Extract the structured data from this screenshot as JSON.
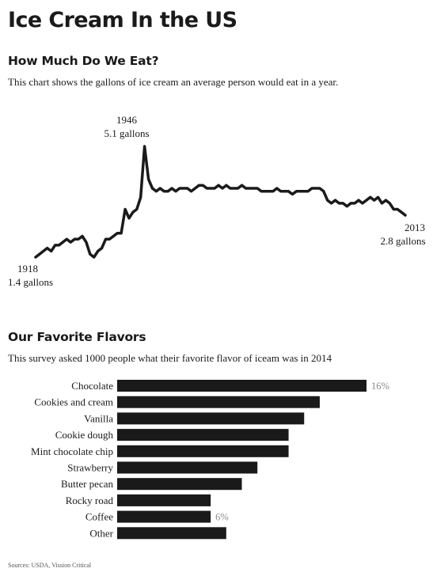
{
  "page": {
    "title": "Ice Cream In the US",
    "sources": "Sources: USDA, Vission Critical"
  },
  "consumption": {
    "heading": "How Much Do We Eat?",
    "description": "This chart shows the gallons of ice cream an average person would eat in a year.",
    "annotations": {
      "start_year": "1918",
      "start_value": "1.4 gallons",
      "peak_year": "1946",
      "peak_value": "5.1 gallons",
      "end_year": "2013",
      "end_value": "2.8 gallons"
    }
  },
  "flavors": {
    "heading": "Our Favorite Flavors",
    "description": "This survey asked 1000 people what their favorite flavor of iceam was in 2014"
  },
  "colors": {
    "ink": "#1a1a1a",
    "value_label": "#8a8a8a"
  },
  "chart_data": [
    {
      "type": "line",
      "x": [
        1918,
        1919,
        1920,
        1921,
        1922,
        1923,
        1924,
        1925,
        1926,
        1927,
        1928,
        1929,
        1930,
        1931,
        1932,
        1933,
        1934,
        1935,
        1936,
        1937,
        1938,
        1939,
        1940,
        1941,
        1942,
        1943,
        1944,
        1945,
        1946,
        1947,
        1948,
        1949,
        1950,
        1951,
        1952,
        1953,
        1954,
        1955,
        1956,
        1957,
        1958,
        1959,
        1960,
        1961,
        1962,
        1963,
        1964,
        1965,
        1966,
        1967,
        1968,
        1969,
        1970,
        1971,
        1972,
        1973,
        1974,
        1975,
        1976,
        1977,
        1978,
        1979,
        1980,
        1981,
        1982,
        1983,
        1984,
        1985,
        1986,
        1987,
        1988,
        1989,
        1990,
        1991,
        1992,
        1993,
        1994,
        1995,
        1996,
        1997,
        1998,
        1999,
        2000,
        2001,
        2002,
        2003,
        2004,
        2005,
        2006,
        2007,
        2008,
        2009,
        2010,
        2011,
        2012,
        2013
      ],
      "series": [
        {
          "values": [
            1.4,
            1.5,
            1.6,
            1.7,
            1.6,
            1.8,
            1.8,
            1.9,
            2.0,
            1.9,
            2.0,
            2.0,
            2.1,
            1.9,
            1.5,
            1.4,
            1.6,
            1.7,
            2.0,
            2.0,
            2.1,
            2.2,
            2.2,
            3.0,
            2.7,
            2.9,
            3.0,
            3.4,
            5.1,
            4.0,
            3.7,
            3.6,
            3.7,
            3.6,
            3.6,
            3.7,
            3.6,
            3.7,
            3.7,
            3.7,
            3.6,
            3.7,
            3.8,
            3.8,
            3.7,
            3.7,
            3.7,
            3.8,
            3.7,
            3.8,
            3.7,
            3.7,
            3.7,
            3.8,
            3.7,
            3.7,
            3.7,
            3.7,
            3.6,
            3.6,
            3.6,
            3.6,
            3.7,
            3.6,
            3.6,
            3.6,
            3.5,
            3.6,
            3.6,
            3.6,
            3.6,
            3.7,
            3.7,
            3.7,
            3.6,
            3.3,
            3.2,
            3.3,
            3.2,
            3.2,
            3.1,
            3.2,
            3.2,
            3.3,
            3.2,
            3.3,
            3.4,
            3.3,
            3.4,
            3.2,
            3.3,
            3.2,
            3.0,
            3.0,
            2.9,
            2.8
          ]
        }
      ],
      "xlim": [
        1918,
        2013
      ],
      "ylim": [
        1.4,
        5.1
      ]
    },
    {
      "type": "bar",
      "orientation": "horizontal",
      "categories": [
        "Chocolate",
        "Cookies and cream",
        "Vanilla",
        "Cookie dough",
        "Mint chocolate chip",
        "Strawberry",
        "Butter pecan",
        "Rocky road",
        "Coffee",
        "Other"
      ],
      "values": [
        16,
        13,
        12,
        11,
        11,
        9,
        8,
        6,
        6,
        7
      ],
      "data_labels": {
        "0": "16%",
        "8": "6%"
      },
      "xlim": [
        0,
        16
      ]
    }
  ]
}
